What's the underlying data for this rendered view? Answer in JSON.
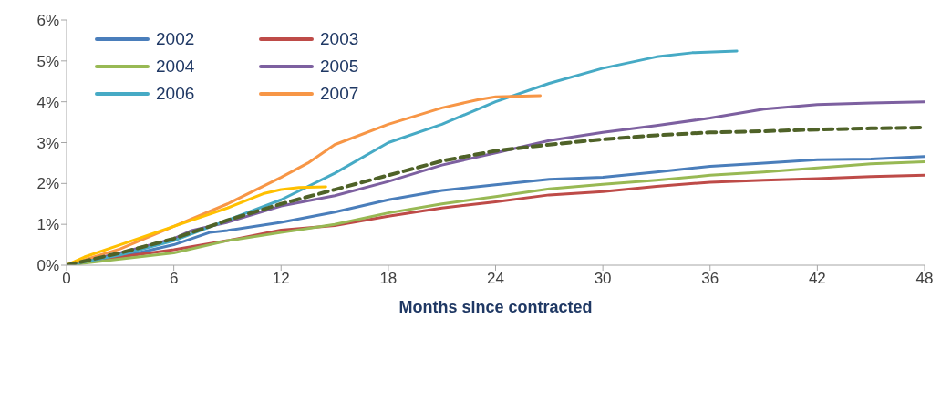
{
  "chart_data": {
    "type": "line",
    "xlabel": "Months since contracted",
    "xlim": [
      0,
      48
    ],
    "xticks": [
      0,
      6,
      12,
      18,
      24,
      30,
      36,
      42,
      48
    ],
    "ylim": [
      0,
      6
    ],
    "yticks": [
      {
        "value": 0,
        "label": "0%"
      },
      {
        "value": 1,
        "label": "1%"
      },
      {
        "value": 2,
        "label": "2%"
      },
      {
        "value": 3,
        "label": "3%"
      },
      {
        "value": 4,
        "label": "4%"
      },
      {
        "value": 5,
        "label": "5%"
      },
      {
        "value": 6,
        "label": "6%"
      }
    ],
    "grid": false,
    "legend": "top left",
    "line_style": "solid",
    "marker": "none",
    "series": [
      {
        "name": "2002",
        "color": "#4a7ebb",
        "x": [
          0,
          3,
          6,
          8,
          9,
          12,
          15,
          18,
          21,
          24,
          27,
          30,
          33,
          36,
          39,
          42,
          45,
          48
        ],
        "values": [
          0,
          0.2,
          0.5,
          0.8,
          0.85,
          1.05,
          1.3,
          1.6,
          1.83,
          1.97,
          2.1,
          2.15,
          2.28,
          2.42,
          2.5,
          2.58,
          2.6,
          2.66
        ]
      },
      {
        "name": "2003",
        "color": "#be4b48",
        "x": [
          0,
          3,
          6,
          9,
          12,
          15,
          18,
          21,
          24,
          27,
          30,
          33,
          36,
          39,
          42,
          45,
          48
        ],
        "values": [
          0,
          0.2,
          0.38,
          0.6,
          0.86,
          0.97,
          1.2,
          1.4,
          1.55,
          1.72,
          1.8,
          1.93,
          2.03,
          2.08,
          2.12,
          2.17,
          2.2
        ]
      },
      {
        "name": "2004",
        "color": "#98b954",
        "x": [
          0,
          3,
          6,
          9,
          12,
          15,
          18,
          21,
          24,
          27,
          30,
          33,
          36,
          39,
          42,
          45,
          48
        ],
        "values": [
          0,
          0.15,
          0.3,
          0.6,
          0.8,
          1.0,
          1.28,
          1.5,
          1.68,
          1.87,
          1.98,
          2.08,
          2.2,
          2.28,
          2.38,
          2.48,
          2.53
        ]
      },
      {
        "name": "2005",
        "color": "#7d60a0",
        "x": [
          0,
          3,
          6,
          7,
          9,
          12,
          15,
          18,
          21,
          24,
          27,
          30,
          33,
          36,
          39,
          42,
          45,
          48
        ],
        "values": [
          0,
          0.3,
          0.65,
          0.85,
          1.05,
          1.45,
          1.7,
          2.05,
          2.45,
          2.75,
          3.05,
          3.25,
          3.42,
          3.6,
          3.82,
          3.93,
          3.97,
          4.0
        ]
      },
      {
        "name": "2006",
        "color": "#46aac5",
        "x": [
          0,
          3,
          6,
          9,
          12,
          15,
          18,
          21,
          24,
          27,
          30,
          33,
          35,
          37.5
        ],
        "values": [
          0,
          0.25,
          0.6,
          1.1,
          1.6,
          2.25,
          3.0,
          3.45,
          4.0,
          4.45,
          4.82,
          5.1,
          5.2,
          5.24
        ]
      },
      {
        "name": "2007",
        "color": "#f79646",
        "x": [
          0,
          3,
          6,
          9,
          12,
          13.5,
          15,
          18,
          21,
          23,
          24,
          26.5
        ],
        "values": [
          0,
          0.4,
          0.95,
          1.5,
          2.15,
          2.5,
          2.95,
          3.45,
          3.85,
          4.05,
          4.12,
          4.15
        ]
      },
      {
        "color": "#ffc000",
        "x": [
          0,
          1,
          3,
          6,
          9,
          11,
          12,
          13,
          14.5
        ],
        "values": [
          0,
          0.2,
          0.5,
          0.95,
          1.4,
          1.75,
          1.85,
          1.9,
          1.92
        ]
      },
      {
        "color": "#4f6228",
        "line_style": "dashed",
        "x": [
          0,
          3,
          6,
          9,
          12,
          15,
          18,
          21,
          24,
          27,
          30,
          33,
          36,
          39,
          42,
          45,
          48
        ],
        "values": [
          0,
          0.3,
          0.65,
          1.1,
          1.5,
          1.85,
          2.2,
          2.55,
          2.8,
          2.95,
          3.08,
          3.18,
          3.25,
          3.28,
          3.32,
          3.35,
          3.37
        ]
      }
    ]
  }
}
